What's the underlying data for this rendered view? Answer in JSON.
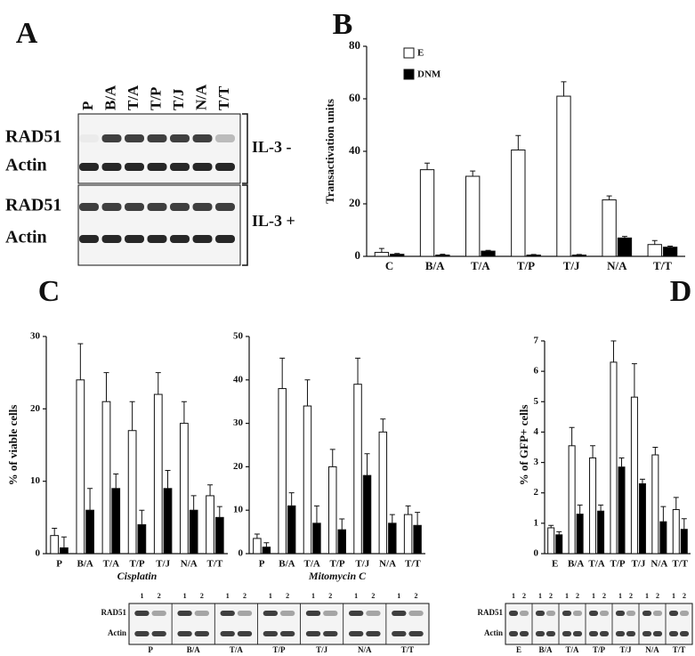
{
  "panels": [
    "A",
    "B",
    "C",
    "D"
  ],
  "blot_a": {
    "lanes": [
      "P",
      "B/A",
      "T/A",
      "T/P",
      "T/J",
      "N/A",
      "T/T"
    ],
    "rows": [
      "RAD51",
      "Actin",
      "RAD51",
      "Actin"
    ],
    "conditions": [
      "IL-3 -",
      "IL-3 +"
    ]
  },
  "blot_c": {
    "lane_numbers": [
      "1",
      "2"
    ],
    "rows": [
      "RAD51",
      "Actin"
    ],
    "lanes": [
      "P",
      "B/A",
      "T/A",
      "T/P",
      "T/J",
      "N/A",
      "T/T"
    ]
  },
  "blot_d": {
    "lane_numbers": [
      "1",
      "2"
    ],
    "rows": [
      "RAD51",
      "Actin"
    ],
    "lanes": [
      "E",
      "B/A",
      "T/A",
      "T/P",
      "T/J",
      "N/A",
      "T/T"
    ]
  },
  "chart_data": [
    {
      "type": "bar",
      "y_label": "Transactivation units",
      "categories": [
        "C",
        "B/A",
        "T/A",
        "T/P",
        "T/J",
        "N/A",
        "T/T"
      ],
      "series": [
        {
          "name": "E",
          "color": "#ffffff",
          "values": [
            1.5,
            33,
            30.5,
            40.5,
            61,
            21.5,
            4.5
          ],
          "errors": [
            1.5,
            2.5,
            2,
            5.5,
            5.5,
            1.5,
            1.5
          ]
        },
        {
          "name": "DNM",
          "color": "#000000",
          "values": [
            0.8,
            0.5,
            2,
            0.5,
            0.5,
            7,
            3.5
          ],
          "errors": [
            0.3,
            0.3,
            0.3,
            0.2,
            0.2,
            0.6,
            0.4
          ]
        }
      ],
      "ylim": [
        0,
        80
      ],
      "yticks": [
        0,
        20,
        40,
        60,
        80
      ],
      "legend": "upper-left"
    },
    {
      "type": "bar",
      "y_label": "% of viable cells",
      "x_label": "Cisplatin",
      "categories": [
        "P",
        "B/A",
        "T/A",
        "T/P",
        "T/J",
        "N/A",
        "T/T"
      ],
      "series": [
        {
          "color": "#ffffff",
          "values": [
            2.5,
            24,
            21,
            17,
            22,
            18,
            8
          ],
          "errors": [
            1,
            5,
            4,
            4,
            3,
            3,
            1.5
          ]
        },
        {
          "color": "#000000",
          "values": [
            0.8,
            6,
            9,
            4,
            9,
            6,
            5
          ],
          "errors": [
            1.5,
            3,
            2,
            2,
            2.5,
            2,
            1.5
          ]
        }
      ],
      "ylim": [
        0,
        30
      ],
      "yticks": [
        0,
        10,
        20,
        30
      ]
    },
    {
      "type": "bar",
      "x_label": "Mitomycin C",
      "categories": [
        "P",
        "B/A",
        "T/A",
        "T/P",
        "T/J",
        "N/A",
        "T/T"
      ],
      "series": [
        {
          "color": "#ffffff",
          "values": [
            3.5,
            38,
            34,
            20,
            39,
            28,
            9
          ],
          "errors": [
            1,
            7,
            6,
            4,
            6,
            3,
            2
          ]
        },
        {
          "color": "#000000",
          "values": [
            1.5,
            11,
            7,
            5.5,
            18,
            7,
            6.5
          ],
          "errors": [
            1,
            3,
            4,
            2.5,
            5,
            2,
            3
          ]
        }
      ],
      "ylim": [
        0,
        50
      ],
      "yticks": [
        0,
        10,
        20,
        30,
        40,
        50
      ]
    },
    {
      "type": "bar",
      "y_label": "% of GFP+ cells",
      "categories": [
        "E",
        "B/A",
        "T/A",
        "T/P",
        "T/J",
        "N/A",
        "T/T"
      ],
      "series": [
        {
          "color": "#ffffff",
          "values": [
            0.85,
            3.55,
            3.15,
            6.3,
            5.15,
            3.25,
            1.45
          ],
          "errors": [
            0.08,
            0.6,
            0.4,
            0.7,
            1.1,
            0.25,
            0.4
          ]
        },
        {
          "color": "#000000",
          "values": [
            0.62,
            1.3,
            1.4,
            2.85,
            2.3,
            1.05,
            0.8
          ],
          "errors": [
            0.1,
            0.3,
            0.2,
            0.3,
            0.15,
            0.5,
            0.35
          ]
        }
      ],
      "ylim": [
        0,
        7
      ],
      "yticks": [
        0,
        1,
        2,
        3,
        4,
        5,
        6,
        7
      ]
    }
  ]
}
